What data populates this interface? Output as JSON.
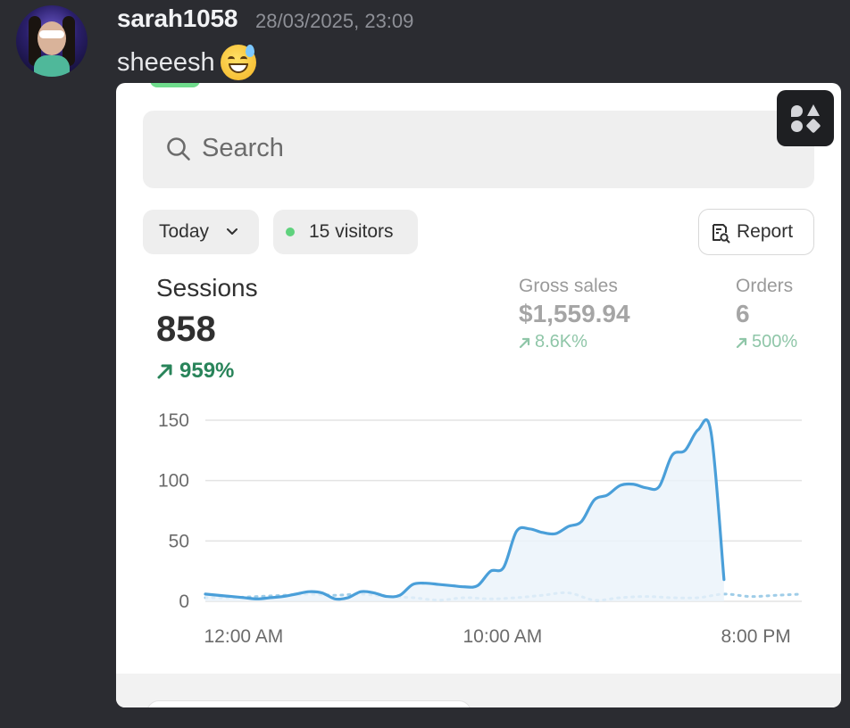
{
  "message": {
    "username": "sarah1058",
    "timestamp": "28/03/2025, 23:09",
    "text": "sheeesh",
    "emoji": "grinning-face-with-sweat-emoji"
  },
  "card": {
    "search_placeholder": "Search",
    "date_filter": "Today",
    "visitors": "15 visitors",
    "report_label": "Report",
    "sessions": {
      "label": "Sessions",
      "value": "858",
      "change": "959%"
    },
    "gross_sales": {
      "label": "Gross sales",
      "value": "$1,559.94",
      "change": "8.6K%"
    },
    "orders": {
      "label": "Orders",
      "value": "6",
      "change": "500%"
    }
  },
  "colors": {
    "accent_line": "#4a9fd9",
    "positive": "#29845a",
    "background": "#2b2c31"
  },
  "chart_data": {
    "type": "line",
    "x_tick_labels": [
      "12:00 AM",
      "10:00 AM",
      "8:00 PM"
    ],
    "y_ticks": [
      150,
      100,
      50,
      0
    ],
    "ylim": [
      0,
      150
    ],
    "x_hours": [
      0,
      23
    ],
    "grid": true,
    "series": [
      {
        "style": "solid",
        "x": [
          0,
          0.5,
          1,
          1.5,
          2,
          2.5,
          3,
          3.5,
          4,
          4.5,
          5,
          5.5,
          6,
          6.5,
          7,
          7.5,
          8,
          8.5,
          9,
          9.5,
          10,
          10.5,
          11,
          11.5,
          12,
          12.5,
          13,
          13.5,
          14,
          14.5,
          15,
          15.5,
          16,
          16.5,
          17,
          17.5,
          18,
          18.5,
          19,
          19.5,
          20
        ],
        "y": [
          6,
          5,
          4,
          3,
          2,
          3,
          4,
          6,
          8,
          7,
          2,
          3,
          8,
          7,
          4,
          5,
          14,
          15,
          14,
          13,
          12,
          13,
          25,
          28,
          58,
          60,
          57,
          56,
          62,
          66,
          84,
          88,
          96,
          97,
          94,
          95,
          121,
          125,
          142,
          140,
          18
        ]
      },
      {
        "style": "dotted",
        "x": [
          0,
          1,
          2,
          3,
          4,
          5,
          6,
          7,
          8,
          9,
          10,
          11,
          12,
          13,
          14,
          15,
          16,
          17,
          18,
          19,
          20,
          21,
          22,
          23
        ],
        "y": [
          3,
          3,
          4,
          5,
          6,
          5,
          6,
          4,
          3,
          1,
          3,
          2,
          3,
          5,
          7,
          1,
          3,
          4,
          3,
          3,
          6,
          4,
          5,
          6
        ]
      }
    ]
  }
}
